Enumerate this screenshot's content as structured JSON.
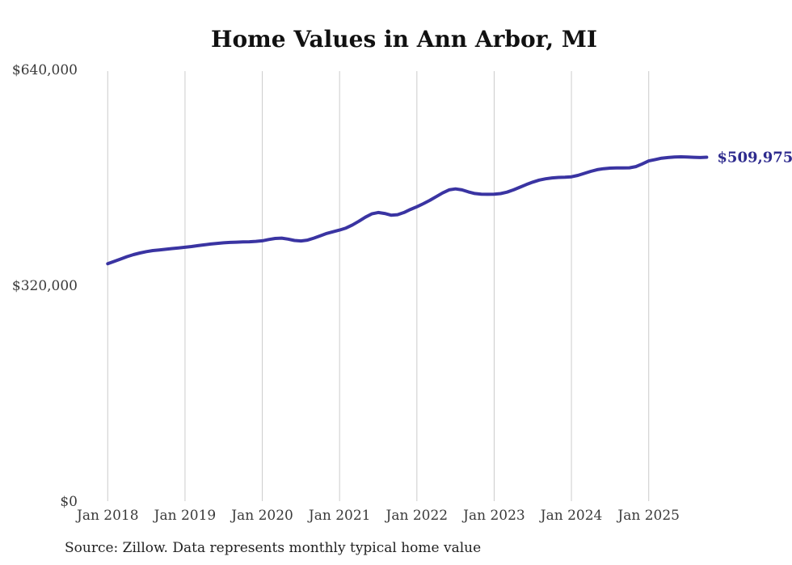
{
  "page": {
    "background_color": "#ffffff"
  },
  "chart_data": {
    "type": "line",
    "title": "Home Values in Ann Arbor, MI",
    "source_note": "Source: Zillow. Data represents monthly typical home value",
    "end_label": "$509,975",
    "series_name": "Monthly typical home value",
    "line_color": "#3a34a2",
    "end_label_color": "#2e2b8e",
    "grid_color": "#cccccc",
    "tick_text_color": "#3a3a3a",
    "grid": "vertical-only",
    "legend": "none",
    "y_axis_range": [
      0,
      640000
    ],
    "y_ticks": [
      {
        "value": 0,
        "label": "$0"
      },
      {
        "value": 320000,
        "label": "$320,000"
      },
      {
        "value": 640000,
        "label": "$640,000"
      }
    ],
    "x_tick_labels": [
      "Jan 2018",
      "Jan 2019",
      "Jan 2020",
      "Jan 2021",
      "Jan 2022",
      "Jan 2023",
      "Jan 2024",
      "Jan 2025"
    ],
    "months": [
      "2018-01",
      "2018-02",
      "2018-03",
      "2018-04",
      "2018-05",
      "2018-06",
      "2018-07",
      "2018-08",
      "2018-09",
      "2018-10",
      "2018-11",
      "2018-12",
      "2019-01",
      "2019-02",
      "2019-03",
      "2019-04",
      "2019-05",
      "2019-06",
      "2019-07",
      "2019-08",
      "2019-09",
      "2019-10",
      "2019-11",
      "2019-12",
      "2020-01",
      "2020-02",
      "2020-03",
      "2020-04",
      "2020-05",
      "2020-06",
      "2020-07",
      "2020-08",
      "2020-09",
      "2020-10",
      "2020-11",
      "2020-12",
      "2021-01",
      "2021-02",
      "2021-03",
      "2021-04",
      "2021-05",
      "2021-06",
      "2021-07",
      "2021-08",
      "2021-09",
      "2021-10",
      "2021-11",
      "2021-12",
      "2022-01",
      "2022-02",
      "2022-03",
      "2022-04",
      "2022-05",
      "2022-06",
      "2022-07",
      "2022-08",
      "2022-09",
      "2022-10",
      "2022-11",
      "2022-12",
      "2023-01",
      "2023-02",
      "2023-03",
      "2023-04",
      "2023-05",
      "2023-06",
      "2023-07",
      "2023-08",
      "2023-09",
      "2023-10",
      "2023-11",
      "2023-12",
      "2024-01",
      "2024-02",
      "2024-03",
      "2024-04",
      "2024-05",
      "2024-06",
      "2024-07",
      "2024-08",
      "2024-09",
      "2024-10",
      "2024-11",
      "2024-12",
      "2025-01",
      "2025-02",
      "2025-03",
      "2025-04",
      "2025-05",
      "2025-06",
      "2025-07",
      "2025-08",
      "2025-09",
      "2025-10"
    ],
    "values": [
      352000,
      355500,
      359000,
      362500,
      365500,
      368000,
      370000,
      371500,
      372500,
      373500,
      374500,
      375500,
      376500,
      377500,
      378800,
      380000,
      381200,
      382200,
      383000,
      383600,
      384000,
      384300,
      384600,
      385200,
      386000,
      388000,
      389500,
      390000,
      388500,
      386500,
      385800,
      387000,
      390000,
      393500,
      397000,
      399500,
      402000,
      405000,
      409500,
      415000,
      421000,
      426000,
      428000,
      426500,
      424000,
      424800,
      428000,
      432500,
      436500,
      441000,
      446000,
      451500,
      457000,
      461500,
      463000,
      461500,
      458500,
      456200,
      455200,
      455000,
      455200,
      456000,
      458200,
      461500,
      465500,
      469500,
      473000,
      476000,
      478000,
      479300,
      480000,
      480400,
      481000,
      483000,
      486000,
      489000,
      491500,
      493000,
      493800,
      494000,
      494000,
      494300,
      496000,
      500000,
      504500,
      506500,
      508500,
      509500,
      510300,
      510600,
      510300,
      509800,
      509500,
      509975
    ]
  }
}
